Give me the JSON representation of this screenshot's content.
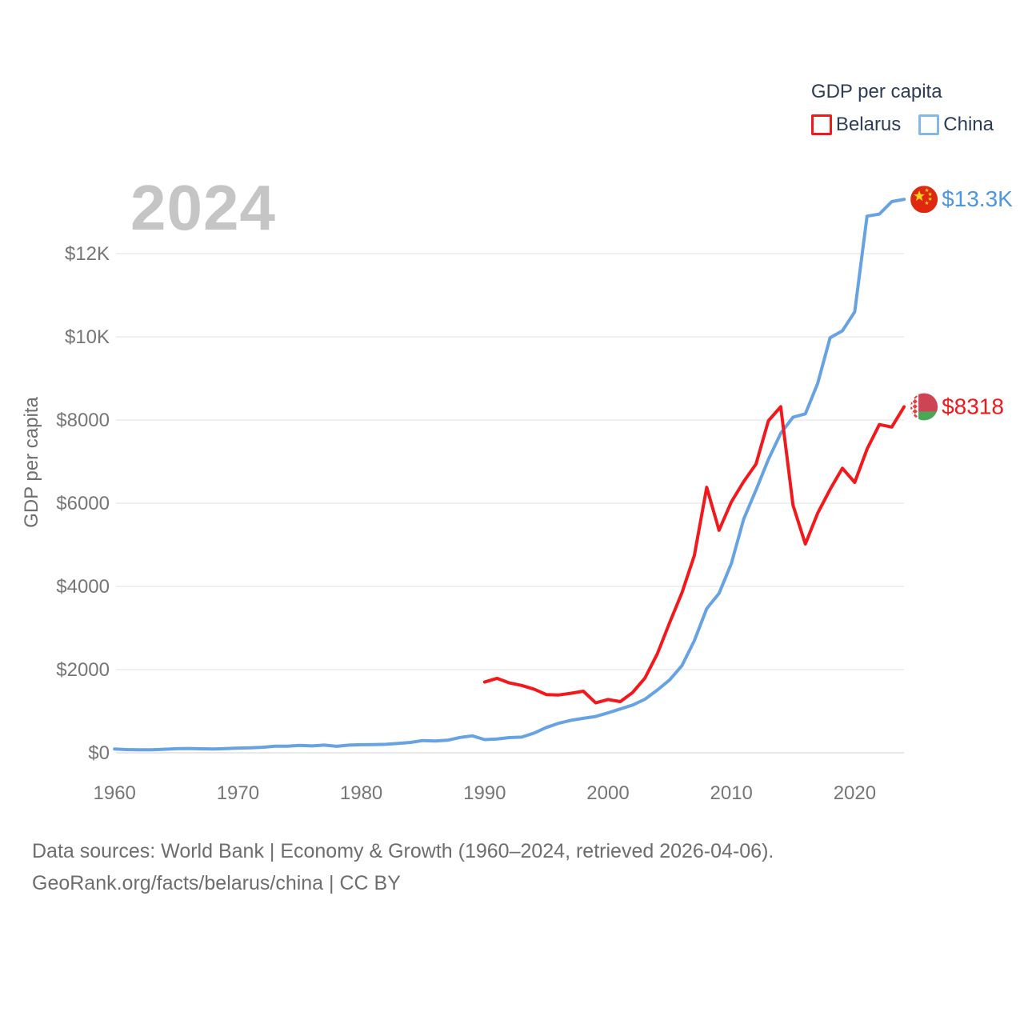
{
  "watermark_year": "2024",
  "legend": {
    "title": "GDP per capita",
    "items": [
      {
        "id": "belarus",
        "label": "Belarus",
        "swatch_color": "#f3181c"
      },
      {
        "id": "china",
        "label": "China",
        "swatch_color": "#85b7ea"
      }
    ]
  },
  "chart_data": {
    "type": "line",
    "title": "GDP per capita",
    "ylabel": "GDP per capita",
    "xlim": [
      1960,
      2024
    ],
    "ylim": [
      0,
      13500
    ],
    "grid": true,
    "legend_position": "top-right",
    "x_ticks": [
      1960,
      1970,
      1980,
      1990,
      2000,
      2010,
      2020
    ],
    "y_ticks": [
      {
        "value": 0,
        "label": "$0"
      },
      {
        "value": 2000,
        "label": "$2000"
      },
      {
        "value": 4000,
        "label": "$4000"
      },
      {
        "value": 6000,
        "label": "$6000"
      },
      {
        "value": 8000,
        "label": "$8000"
      },
      {
        "value": 10000,
        "label": "$10K"
      },
      {
        "value": 12000,
        "label": "$12K"
      }
    ],
    "series": [
      {
        "name": "China",
        "color": "#67a2e3",
        "start_year": 1960,
        "end_label": "$13.3K",
        "end_label_color": "#4f95df",
        "flag": "china",
        "values": [
          90,
          76,
          71,
          74,
          85,
          98,
          104,
          97,
          91,
          100,
          113,
          119,
          132,
          157,
          160,
          178,
          165,
          185,
          156,
          184,
          195,
          197,
          203,
          225,
          250,
          294,
          282,
          301,
          370,
          407,
          318,
          333,
          366,
          377,
          473,
          610,
          709,
          781,
          828,
          873,
          959,
          1053,
          1149,
          1289,
          1509,
          1753,
          2099,
          2694,
          3468,
          3832,
          4550,
          5618,
          6317,
          7051,
          7679,
          8067,
          8148,
          8879,
          9977,
          10144,
          10600,
          12900,
          12950,
          13250,
          13303
        ]
      },
      {
        "name": "Belarus",
        "color": "#f3181c",
        "start_year": 1990,
        "end_label": "$8318",
        "end_label_color": "#f3181c",
        "flag": "belarus",
        "values": [
          1700,
          1790,
          1680,
          1620,
          1530,
          1400,
          1390,
          1430,
          1480,
          1200,
          1280,
          1230,
          1450,
          1800,
          2380,
          3130,
          3850,
          4740,
          6380,
          5350,
          6030,
          6520,
          6940,
          7980,
          8320,
          5950,
          5020,
          5760,
          6330,
          6840,
          6500,
          7300,
          7890,
          7830,
          8318
        ]
      }
    ]
  },
  "footer": {
    "line1": "Data sources: World Bank | Economy & Growth (1960–2024, retrieved 2026-04-06).",
    "line2": "GeoRank.org/facts/belarus/china | CC BY"
  }
}
